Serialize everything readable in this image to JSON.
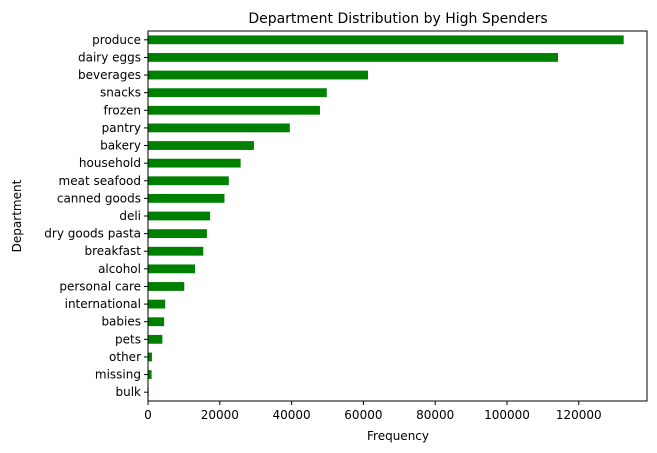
{
  "chart_data": {
    "type": "bar",
    "orientation": "horizontal",
    "title": "Department Distribution by High Spenders",
    "xlabel": "Frequency",
    "ylabel": "Department",
    "xlim": [
      0,
      139000
    ],
    "xticks": [
      0,
      20000,
      40000,
      60000,
      80000,
      100000,
      120000
    ],
    "grid": false,
    "legend": "none",
    "bar_color": "#008000",
    "categories": [
      "produce",
      "dairy eggs",
      "beverages",
      "snacks",
      "frozen",
      "pantry",
      "bakery",
      "household",
      "meat seafood",
      "canned goods",
      "deli",
      "dry goods pasta",
      "breakfast",
      "alcohol",
      "personal care",
      "international",
      "babies",
      "pets",
      "other",
      "missing",
      "bulk"
    ],
    "values": [
      132500,
      114200,
      61300,
      49800,
      47900,
      39500,
      29500,
      25800,
      22500,
      21300,
      17300,
      16400,
      15400,
      13100,
      10100,
      4800,
      4500,
      4000,
      1100,
      1000,
      200
    ]
  }
}
